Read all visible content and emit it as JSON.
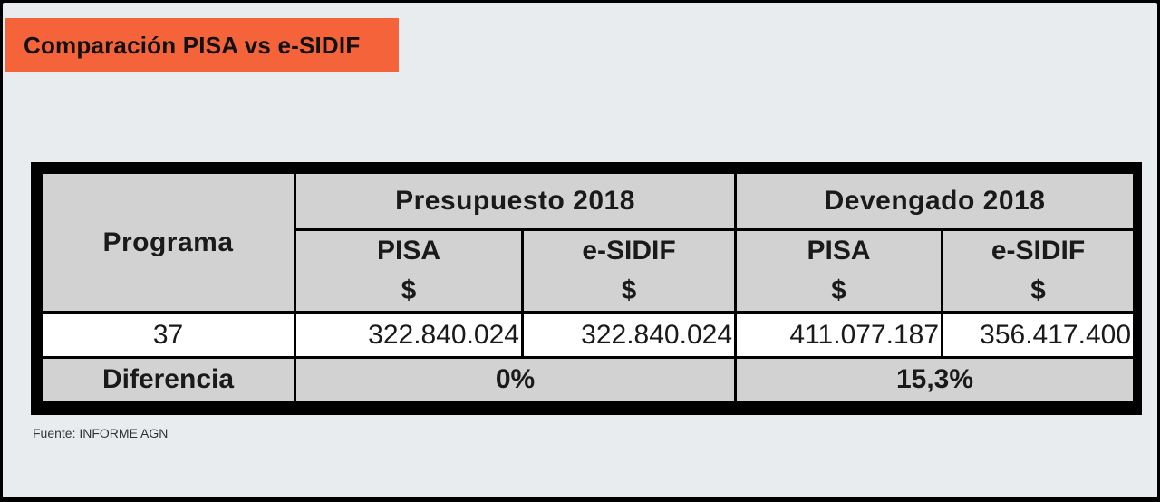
{
  "title": "Comparación PISA vs e-SIDIF",
  "table": {
    "programa_header": "Programa",
    "groups": [
      {
        "label": "Presupuesto 2018"
      },
      {
        "label": "Devengado 2018"
      }
    ],
    "subheaders": [
      {
        "name": "PISA",
        "unit": "$"
      },
      {
        "name": "e-SIDIF",
        "unit": "$"
      },
      {
        "name": "PISA",
        "unit": "$"
      },
      {
        "name": "e-SIDIF",
        "unit": "$"
      }
    ],
    "row": {
      "programa": "37",
      "values": [
        "322.840.024",
        "322.840.024",
        "411.077.187",
        "356.417.400"
      ]
    },
    "diferencia": {
      "label": "Diferencia",
      "presupuesto": "0%",
      "devengado": "15,3%"
    }
  },
  "source": "Fuente: INFORME AGN",
  "colors": {
    "accent": "#f4633a",
    "background": "#e9ecef",
    "header_cell": "#d2d2d2",
    "border": "#000000"
  }
}
